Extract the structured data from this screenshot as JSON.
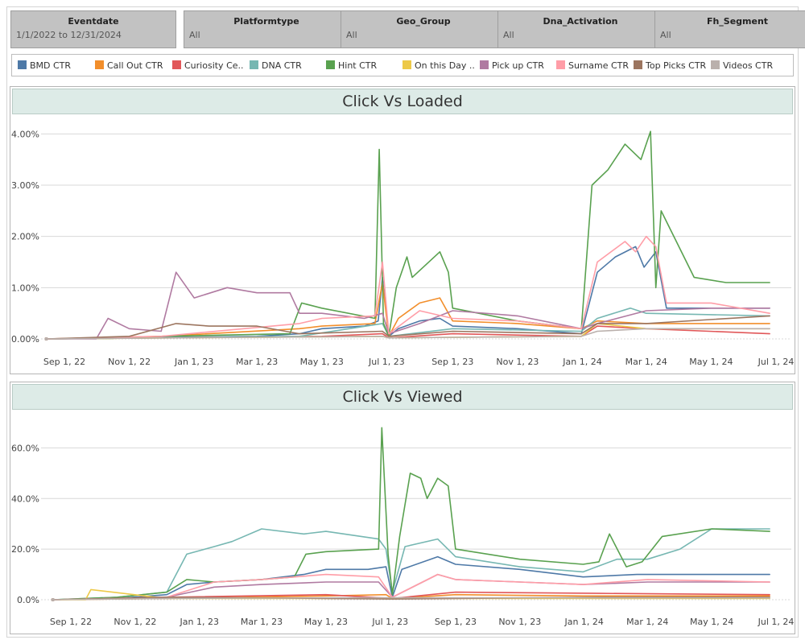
{
  "filters": [
    {
      "title": "Eventdate",
      "value": "1/1/2022 to 12/31/2024"
    },
    {
      "title": "Platformtype",
      "value": "All"
    },
    {
      "title": "Geo_Group",
      "value": "All"
    },
    {
      "title": "Dna_Activation",
      "value": "All"
    },
    {
      "title": "Fh_Segment",
      "value": "All"
    }
  ],
  "legend": [
    {
      "label": "BMD CTR",
      "color": "#4e79a7"
    },
    {
      "label": "Call Out CTR",
      "color": "#f28e2b"
    },
    {
      "label": "Curiosity Ce..",
      "color": "#e15759"
    },
    {
      "label": "DNA CTR",
      "color": "#76b7b2"
    },
    {
      "label": "Hint CTR",
      "color": "#59a14f"
    },
    {
      "label": "On this Day ..",
      "color": "#edc948"
    },
    {
      "label": "Pick up CTR",
      "color": "#b07aa1"
    },
    {
      "label": "Surname CTR",
      "color": "#ff9da7"
    },
    {
      "label": "Top Picks CTR",
      "color": "#9c755f"
    },
    {
      "label": "Videos CTR",
      "color": "#bab0ac"
    }
  ],
  "chart_data": [
    {
      "type": "line",
      "title": "Click Vs Loaded",
      "xlabel": "",
      "ylabel": "",
      "x_ticks": [
        "Sep 1, 22",
        "Nov 1, 22",
        "Jan 1, 23",
        "Mar 1, 23",
        "May 1, 23",
        "Jul 1, 23",
        "Sep 1, 23",
        "Nov 1, 23",
        "Jan 1, 24",
        "Mar 1, 24",
        "May 1, 24",
        "Jul 1, 24"
      ],
      "y_ticks": [
        "0.00%",
        "1.00%",
        "2.00%",
        "3.00%",
        "4.00%"
      ],
      "ylim": [
        0,
        4.1
      ],
      "y_unit": "%",
      "grid": true,
      "series": [
        {
          "name": "BMD CTR",
          "color": "#4e79a7",
          "x": [
            "2022-08-15",
            "2022-10-01",
            "2022-12-01",
            "2023-03-01",
            "2023-04-10",
            "2023-05-01",
            "2023-06-10",
            "2023-06-23",
            "2023-06-27",
            "2023-07-03",
            "2023-07-12",
            "2023-08-01",
            "2023-08-20",
            "2023-09-01",
            "2023-11-01",
            "2023-12-31",
            "2024-01-15",
            "2024-02-01",
            "2024-02-20",
            "2024-02-28",
            "2024-03-10",
            "2024-03-20",
            "2024-05-01",
            "2024-06-25"
          ],
          "y": [
            0,
            0.01,
            0.03,
            0.05,
            0.1,
            0.2,
            0.25,
            0.35,
            1.2,
            0.05,
            0.2,
            0.35,
            0.4,
            0.25,
            0.2,
            0.1,
            1.3,
            1.6,
            1.8,
            1.4,
            1.7,
            0.6,
            0.6,
            0.6
          ]
        },
        {
          "name": "Call Out CTR",
          "color": "#f28e2b",
          "x": [
            "2022-08-15",
            "2022-12-01",
            "2023-04-10",
            "2023-05-01",
            "2023-06-20",
            "2023-06-27",
            "2023-07-03",
            "2023-07-12",
            "2023-08-01",
            "2023-08-20",
            "2023-09-01",
            "2023-11-01",
            "2023-12-31",
            "2024-01-15",
            "2024-03-01",
            "2024-05-01",
            "2024-06-25"
          ],
          "y": [
            0,
            0.05,
            0.2,
            0.25,
            0.3,
            1.1,
            0.05,
            0.4,
            0.7,
            0.8,
            0.35,
            0.3,
            0.2,
            0.35,
            0.3,
            0.3,
            0.3
          ]
        },
        {
          "name": "Curiosity Center CTR",
          "color": "#e15759",
          "x": [
            "2022-08-15",
            "2022-12-01",
            "2023-05-01",
            "2023-06-27",
            "2023-07-03",
            "2023-09-01",
            "2023-12-31",
            "2024-01-15",
            "2024-03-01",
            "2024-06-25"
          ],
          "y": [
            0,
            0.02,
            0.05,
            0.1,
            0.02,
            0.1,
            0.05,
            0.25,
            0.2,
            0.1
          ]
        },
        {
          "name": "DNA CTR",
          "color": "#76b7b2",
          "x": [
            "2022-08-15",
            "2023-04-10",
            "2023-06-27",
            "2023-07-03",
            "2023-09-01",
            "2023-12-31",
            "2024-01-15",
            "2024-02-15",
            "2024-03-01",
            "2024-06-25"
          ],
          "y": [
            0,
            0.05,
            0.3,
            0.05,
            0.2,
            0.15,
            0.4,
            0.6,
            0.5,
            0.45
          ]
        },
        {
          "name": "Hint CTR",
          "color": "#59a14f",
          "x": [
            "2022-08-15",
            "2022-10-15",
            "2022-12-01",
            "2023-04-01",
            "2023-04-12",
            "2023-05-01",
            "2023-06-20",
            "2023-06-24",
            "2023-06-28",
            "2023-07-03",
            "2023-07-10",
            "2023-07-20",
            "2023-07-25",
            "2023-08-20",
            "2023-08-28",
            "2023-09-01",
            "2023-11-01",
            "2023-12-31",
            "2024-01-10",
            "2024-01-25",
            "2024-02-10",
            "2024-02-25",
            "2024-03-05",
            "2024-03-10",
            "2024-03-15",
            "2024-04-15",
            "2024-05-15",
            "2024-06-25"
          ],
          "y": [
            0,
            0.01,
            0.05,
            0.1,
            0.7,
            0.6,
            0.4,
            3.7,
            0.3,
            0.05,
            1.0,
            1.6,
            1.2,
            1.7,
            1.3,
            0.6,
            0.35,
            0.2,
            3.0,
            3.3,
            3.8,
            3.5,
            4.05,
            1.0,
            2.5,
            1.2,
            1.1,
            1.1
          ]
        },
        {
          "name": "On this Day CTR",
          "color": "#edc948",
          "x": [
            "2022-08-15",
            "2023-06-27",
            "2023-07-03",
            "2023-12-31",
            "2024-01-15",
            "2024-03-01",
            "2024-06-25"
          ],
          "y": [
            0,
            0.05,
            0.02,
            0.05,
            0.3,
            0.2,
            0.2
          ]
        },
        {
          "name": "Pick up CTR",
          "color": "#b07aa1",
          "x": [
            "2022-08-15",
            "2022-10-01",
            "2022-10-12",
            "2022-11-01",
            "2022-12-01",
            "2022-12-15",
            "2023-01-01",
            "2023-02-01",
            "2023-03-01",
            "2023-04-01",
            "2023-04-10",
            "2023-05-01",
            "2023-06-10",
            "2023-06-27",
            "2023-07-03",
            "2023-08-01",
            "2023-09-01",
            "2023-11-01",
            "2023-12-31",
            "2024-01-15",
            "2024-03-01",
            "2024-05-01",
            "2024-06-25"
          ],
          "y": [
            0,
            0,
            0.4,
            0.2,
            0.15,
            1.3,
            0.8,
            1.0,
            0.9,
            0.9,
            0.5,
            0.5,
            0.4,
            0.5,
            0.1,
            0.3,
            0.55,
            0.45,
            0.2,
            0.3,
            0.55,
            0.6,
            0.6
          ]
        },
        {
          "name": "Surname CTR",
          "color": "#ff9da7",
          "x": [
            "2022-08-15",
            "2022-12-01",
            "2023-04-10",
            "2023-05-01",
            "2023-06-20",
            "2023-06-27",
            "2023-07-03",
            "2023-08-01",
            "2023-09-01",
            "2023-11-01",
            "2023-12-31",
            "2024-01-15",
            "2024-02-10",
            "2024-02-20",
            "2024-03-01",
            "2024-03-10",
            "2024-03-20",
            "2024-05-01",
            "2024-06-25"
          ],
          "y": [
            0,
            0.05,
            0.3,
            0.4,
            0.45,
            1.5,
            0.1,
            0.55,
            0.4,
            0.35,
            0.2,
            1.5,
            1.9,
            1.7,
            2.0,
            1.8,
            0.7,
            0.7,
            0.5
          ]
        },
        {
          "name": "Top Picks CTR",
          "color": "#9c755f",
          "x": [
            "2022-08-15",
            "2022-11-01",
            "2022-12-15",
            "2023-01-15",
            "2023-03-01",
            "2023-04-10",
            "2023-06-27",
            "2023-07-03",
            "2023-09-01",
            "2023-12-31",
            "2024-01-15",
            "2024-03-01",
            "2024-06-25"
          ],
          "y": [
            0,
            0.05,
            0.3,
            0.25,
            0.25,
            0.1,
            0.15,
            0.05,
            0.15,
            0.1,
            0.3,
            0.3,
            0.45
          ]
        },
        {
          "name": "Videos CTR",
          "color": "#bab0ac",
          "x": [
            "2022-08-15",
            "2023-06-27",
            "2023-07-03",
            "2023-12-31",
            "2024-01-15",
            "2024-03-01",
            "2024-06-25"
          ],
          "y": [
            0,
            0.05,
            0.02,
            0.05,
            0.15,
            0.2,
            0.2
          ]
        }
      ]
    },
    {
      "type": "line",
      "title": "Click Vs Viewed",
      "xlabel": "",
      "ylabel": "",
      "x_ticks": [
        "Sep 1, 22",
        "Nov 1, 22",
        "Jan 1, 23",
        "Mar 1, 23",
        "May 1, 23",
        "Jul 1, 23",
        "Sep 1, 23",
        "Nov 1, 23",
        "Jan 1, 24",
        "Mar 1, 24",
        "May 1, 24",
        "Jul 1, 24"
      ],
      "y_ticks": [
        "0.0%",
        "20.0%",
        "40.0%",
        "60.0%"
      ],
      "ylim": [
        0,
        70
      ],
      "y_unit": "%",
      "grid": true,
      "series": [
        {
          "name": "BMD CTR",
          "color": "#4e79a7",
          "x": [
            "2022-08-15",
            "2022-10-15",
            "2022-12-01",
            "2022-12-20",
            "2023-01-15",
            "2023-03-01",
            "2023-04-10",
            "2023-05-01",
            "2023-06-10",
            "2023-06-27",
            "2023-07-03",
            "2023-07-12",
            "2023-08-15",
            "2023-09-01",
            "2023-11-01",
            "2023-12-31",
            "2024-02-20",
            "2024-03-01",
            "2024-05-01",
            "2024-06-25"
          ],
          "y": [
            0,
            0.5,
            2,
            6,
            7,
            8,
            10,
            12,
            12,
            13,
            1,
            12,
            17,
            14,
            12,
            9,
            10,
            10,
            10,
            10
          ]
        },
        {
          "name": "Call Out CTR",
          "color": "#f28e2b",
          "x": [
            "2022-08-15",
            "2022-12-01",
            "2023-05-01",
            "2023-06-27",
            "2023-07-03",
            "2023-09-01",
            "2023-12-31",
            "2024-06-25"
          ],
          "y": [
            0,
            0.5,
            1.5,
            2,
            0.5,
            2,
            1.5,
            1.5
          ]
        },
        {
          "name": "Curiosity Center CTR",
          "color": "#e15759",
          "x": [
            "2022-08-15",
            "2022-12-01",
            "2023-05-01",
            "2023-07-03",
            "2023-09-01",
            "2024-01-15",
            "2024-06-25"
          ],
          "y": [
            0,
            1,
            2,
            0.5,
            3,
            2.5,
            2
          ]
        },
        {
          "name": "DNA CTR",
          "color": "#76b7b2",
          "x": [
            "2022-08-15",
            "2022-10-15",
            "2022-12-01",
            "2022-12-20",
            "2023-01-15",
            "2023-02-01",
            "2023-03-01",
            "2023-04-10",
            "2023-05-01",
            "2023-06-20",
            "2023-06-27",
            "2023-07-03",
            "2023-07-15",
            "2023-08-15",
            "2023-09-01",
            "2023-11-01",
            "2023-12-31",
            "2024-02-01",
            "2024-03-01",
            "2024-04-01",
            "2024-05-01",
            "2024-06-25"
          ],
          "y": [
            0,
            1,
            3,
            18,
            21,
            23,
            28,
            26,
            27,
            24,
            20,
            3,
            21,
            24,
            17,
            13,
            11,
            16,
            16,
            20,
            28,
            28
          ]
        },
        {
          "name": "Hint CTR",
          "color": "#59a14f",
          "x": [
            "2022-08-15",
            "2022-10-15",
            "2022-12-01",
            "2022-12-20",
            "2023-01-15",
            "2023-03-01",
            "2023-04-01",
            "2023-04-12",
            "2023-05-01",
            "2023-06-20",
            "2023-06-23",
            "2023-06-29",
            "2023-07-03",
            "2023-07-10",
            "2023-07-20",
            "2023-07-30",
            "2023-08-05",
            "2023-08-15",
            "2023-08-25",
            "2023-09-01",
            "2023-11-01",
            "2023-12-31",
            "2024-01-15",
            "2024-01-25",
            "2024-02-10",
            "2024-02-25",
            "2024-03-15",
            "2024-05-01",
            "2024-06-25"
          ],
          "y": [
            0,
            1,
            3,
            8,
            7,
            8,
            9,
            18,
            19,
            20,
            68,
            18,
            2,
            25,
            50,
            48,
            40,
            48,
            45,
            20,
            16,
            14,
            15,
            26,
            13,
            15,
            25,
            28,
            27
          ]
        },
        {
          "name": "On this Day CTR",
          "color": "#edc948",
          "x": [
            "2022-08-15",
            "2022-09-15",
            "2022-09-20",
            "2022-12-01",
            "2023-07-03",
            "2024-06-25"
          ],
          "y": [
            0,
            0,
            4,
            0.5,
            0.5,
            0.5
          ]
        },
        {
          "name": "Pick up CTR",
          "color": "#b07aa1",
          "x": [
            "2022-08-15",
            "2022-12-01",
            "2023-01-15",
            "2023-03-01",
            "2023-05-01",
            "2023-06-20",
            "2023-07-03",
            "2023-08-15",
            "2023-09-01",
            "2023-11-01",
            "2023-12-31",
            "2024-03-01",
            "2024-06-25"
          ],
          "y": [
            0,
            1,
            5,
            6,
            7,
            7,
            1,
            10,
            8,
            7,
            6,
            7,
            7
          ]
        },
        {
          "name": "Surname CTR",
          "color": "#ff9da7",
          "x": [
            "2022-08-15",
            "2022-12-01",
            "2023-01-15",
            "2023-03-01",
            "2023-05-01",
            "2023-06-20",
            "2023-07-03",
            "2023-08-15",
            "2023-09-01",
            "2023-11-01",
            "2023-12-31",
            "2024-03-01",
            "2024-06-25"
          ],
          "y": [
            0,
            1,
            7,
            8,
            10,
            9,
            1,
            10,
            8,
            7,
            6,
            8,
            7
          ]
        },
        {
          "name": "Top Picks CTR",
          "color": "#9c755f",
          "x": [
            "2022-08-15",
            "2022-12-01",
            "2023-05-01",
            "2023-07-03",
            "2024-01-15",
            "2024-06-25"
          ],
          "y": [
            0,
            1,
            0.5,
            0.3,
            1,
            1
          ]
        },
        {
          "name": "Videos CTR",
          "color": "#bab0ac",
          "x": [
            "2022-08-15",
            "2022-12-01",
            "2023-06-01",
            "2024-06-25"
          ],
          "y": [
            0,
            0.5,
            0.8,
            0.7
          ]
        }
      ]
    }
  ]
}
